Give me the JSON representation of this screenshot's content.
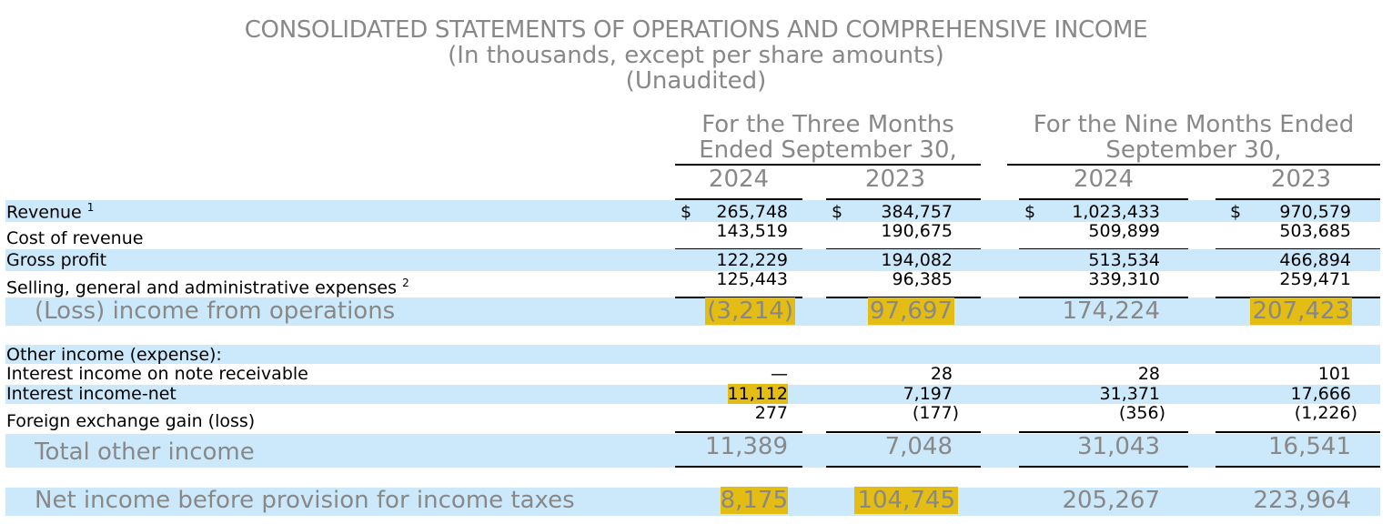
{
  "title": {
    "line1": "CONSOLIDATED STATEMENTS OF OPERATIONS AND COMPREHENSIVE INCOME",
    "line2": "(In thousands, except per share amounts)",
    "line3": "(Unaudited)"
  },
  "headers": {
    "three_months_l1": "For the Three Months",
    "three_months_l2": "Ended September 30,",
    "nine_months_l1": "For the Nine Months Ended",
    "nine_months_l2": "September 30,",
    "years": [
      "2024",
      "2023",
      "2024",
      "2023"
    ]
  },
  "currency_symbol": "$",
  "highlight_color": "#e3bd14",
  "band_color": "#cce9fb",
  "rows": {
    "revenue": {
      "label": "Revenue",
      "note": "1",
      "values": [
        "265,748",
        "384,757",
        "1,023,433",
        "970,579"
      ]
    },
    "cost_of_revenue": {
      "label": "Cost of revenue",
      "values": [
        "143,519",
        "190,675",
        "509,899",
        "503,685"
      ]
    },
    "gross_profit": {
      "label": "Gross profit",
      "values": [
        "122,229",
        "194,082",
        "513,534",
        "466,894"
      ]
    },
    "sga": {
      "label": "Selling, general and administrative expenses",
      "note": "2",
      "values": [
        "125,443",
        "96,385",
        "339,310",
        "259,471"
      ]
    },
    "op_income": {
      "label": "(Loss) income from operations",
      "values": [
        "(3,214)",
        "97,697",
        "174,224",
        "207,423"
      ]
    },
    "other_header": {
      "label": "Other income (expense):"
    },
    "interest_note": {
      "label": "Interest income on note receivable",
      "values": [
        "—",
        "28",
        "28",
        "101"
      ]
    },
    "interest_net": {
      "label": "Interest income-net",
      "values": [
        "11,112",
        "7,197",
        "31,371",
        "17,666"
      ]
    },
    "fx": {
      "label": "Foreign exchange gain (loss)",
      "values": [
        "277",
        "(177)",
        "(356)",
        "(1,226)"
      ]
    },
    "total_other": {
      "label": "Total other income",
      "values": [
        "11,389",
        "7,048",
        "31,043",
        "16,541"
      ]
    },
    "pretax": {
      "label": "Net income before provision for income taxes",
      "values": [
        "8,175",
        "104,745",
        "205,267",
        "223,964"
      ]
    }
  }
}
